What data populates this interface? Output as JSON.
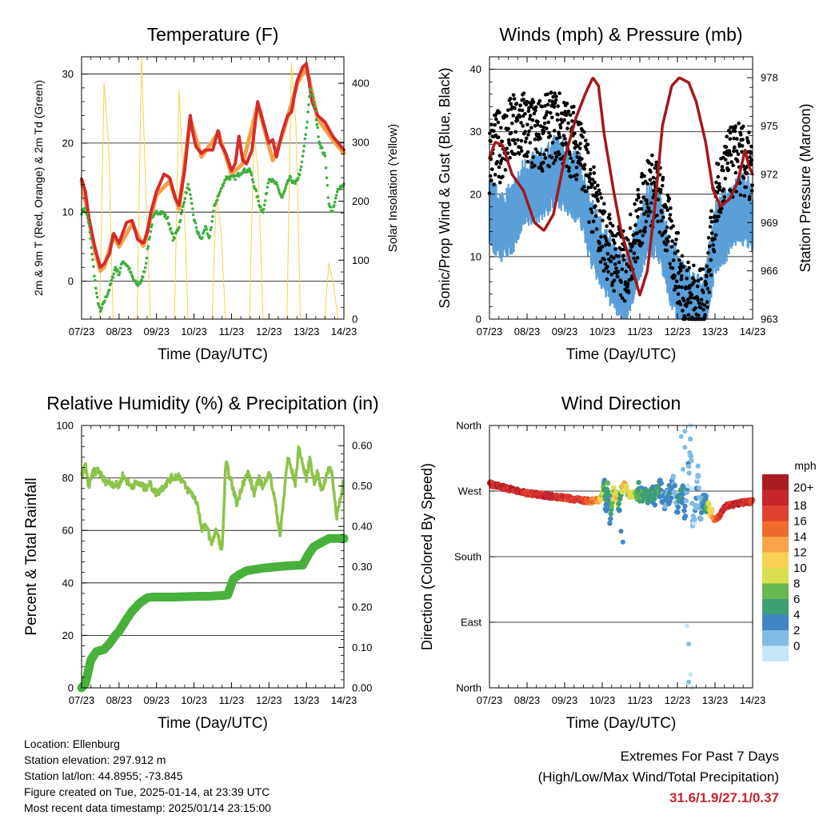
{
  "panels": {
    "temperature": {
      "title": "Temperature (F)",
      "ylabel_left": "2m & 9m T (Red, Orange) & 2m Td (Green)",
      "ylabel_right": "Solar Insolation (Yellow)",
      "xlabel": "Time (Day/UTC)",
      "yticks_left": [
        "0",
        "10",
        "20",
        "30"
      ],
      "yticks_right": [
        "0",
        "100",
        "200",
        "300",
        "400"
      ]
    },
    "winds": {
      "title": "Winds (mph) & Pressure (mb)",
      "ylabel_left": "Sonic/Prop Wind & Gust (Blue, Black)",
      "ylabel_right": "Station Pressure (Maroon)",
      "xlabel": "Time (Day/UTC)",
      "yticks_left": [
        "0",
        "10",
        "20",
        "30",
        "40"
      ],
      "yticks_right": [
        "963",
        "966",
        "969",
        "972",
        "975",
        "978"
      ]
    },
    "humidity": {
      "title": "Relative Humidity (%) & Precipitation (in)",
      "ylabel_left": "Percent & Total Rainfall",
      "xlabel": "Time (Day/UTC)",
      "yticks_left": [
        "0",
        "20",
        "40",
        "60",
        "80",
        "100"
      ],
      "yticks_right": [
        "0.00",
        "0.10",
        "0.20",
        "0.30",
        "0.40",
        "0.50",
        "0.60"
      ]
    },
    "direction": {
      "title": "Wind Direction",
      "ylabel_left": "Direction (Colored By Speed)",
      "xlabel": "Time (Day/UTC)",
      "yticks_left": [
        "North",
        "East",
        "South",
        "West",
        "North"
      ],
      "legend_title": "mph",
      "legend_labels": [
        "20+",
        "18",
        "16",
        "14",
        "12",
        "10",
        "8",
        "6",
        "4",
        "2",
        "0"
      ],
      "legend_colors": [
        "#a81c22",
        "#c8252e",
        "#e0412e",
        "#f06a2c",
        "#f9a34a",
        "#f7d154",
        "#d8df4e",
        "#67b84e",
        "#3f9f74",
        "#3f86c4",
        "#82bce5",
        "#c6e6f7"
      ]
    }
  },
  "xticks": [
    "07/23",
    "08/23",
    "09/23",
    "10/23",
    "11/23",
    "12/23",
    "13/23",
    "14/23"
  ],
  "info": {
    "location": "Location: Ellenburg",
    "elevation": "Station elevation: 297.912 m",
    "latlon": "Station lat/lon: 44.8955; -73.845",
    "created": "Figure created on Tue, 2025-01-14, at 23:39 UTC",
    "recent": "Most recent data timestamp: 2025/01/14 23:15:00"
  },
  "extremes": {
    "line1": "Extremes For Past 7 Days",
    "line2": "(High/Low/Max Wind/Total Precipitation)",
    "values": "31.6/1.9/27.1/0.37"
  },
  "colors": {
    "temp_2m": "#d42c2a",
    "temp_9m": "#f4a04a",
    "dewpoint": "#3fae3f",
    "insolation": "#f7d24a",
    "wind": "#5a9fd8",
    "gust": "#000000",
    "pressure": "#a3181c",
    "rh": "#8cc44a",
    "precip": "#47b13c"
  },
  "chart_data": [
    {
      "type": "line",
      "title": "Temperature (F)",
      "xlabel": "Time (Day/UTC)",
      "ylabel": "2m & 9m T (Red, Orange) & 2m Td (Green)",
      "ylabel_right": "Solar Insolation (Yellow)",
      "x_range": [
        0,
        7
      ],
      "ylim": [
        -5.5,
        32.5
      ],
      "ylim_right": [
        0,
        445
      ],
      "series": [
        {
          "name": "2m T",
          "color": "#d42c2a",
          "x": [
            0,
            0.1,
            0.2,
            0.35,
            0.5,
            0.6,
            0.75,
            0.85,
            1.0,
            1.2,
            1.35,
            1.5,
            1.65,
            1.75,
            1.85,
            2.0,
            2.2,
            2.35,
            2.5,
            2.6,
            2.75,
            2.9,
            2.95,
            3.05,
            3.2,
            3.3,
            3.5,
            3.65,
            3.7,
            3.85,
            4.0,
            4.1,
            4.2,
            4.3,
            4.4,
            4.55,
            4.7,
            4.85,
            5.0,
            5.1,
            5.2,
            5.35,
            5.5,
            5.6,
            5.75,
            5.9,
            6.0,
            6.15,
            6.3,
            6.5,
            6.7,
            6.85,
            7.0
          ],
          "values": [
            14.8,
            13,
            9,
            5,
            2,
            2.5,
            4,
            7,
            5.5,
            8.5,
            8.8,
            6,
            5.5,
            7,
            10,
            13,
            15.5,
            15,
            12,
            11,
            16,
            24,
            22,
            19.5,
            18.5,
            19,
            19,
            22,
            20,
            18.5,
            16,
            17,
            21,
            17.5,
            17,
            19,
            26,
            23,
            20,
            20.5,
            18,
            21.5,
            24,
            24.5,
            29,
            31,
            31.5,
            26,
            24,
            23,
            21,
            20,
            19
          ]
        },
        {
          "name": "9m T",
          "color": "#f4a04a",
          "x": [
            0,
            0.35,
            0.5,
            0.6,
            0.85,
            1.0,
            1.35,
            1.65,
            2.0,
            2.35,
            2.6,
            2.9,
            3.2,
            3.65,
            4.0,
            4.3,
            4.7,
            5.1,
            5.35,
            5.75,
            6.0,
            6.3,
            6.7,
            7.0
          ],
          "values": [
            14.5,
            4.5,
            1.5,
            2,
            6.5,
            5,
            8.3,
            5,
            12.5,
            14.5,
            10.5,
            23.5,
            18,
            21.5,
            15.5,
            17,
            25.5,
            17.5,
            21,
            28.5,
            31,
            23.5,
            20.5,
            18.5
          ]
        },
        {
          "name": "2m Td",
          "color": "#3fae3f",
          "x": [
            0,
            0.1,
            0.2,
            0.3,
            0.4,
            0.5,
            0.6,
            0.75,
            0.9,
            1.0,
            1.1,
            1.25,
            1.4,
            1.5,
            1.6,
            1.7,
            1.8,
            1.9,
            2.0,
            2.15,
            2.3,
            2.45,
            2.6,
            2.75,
            2.85,
            3.0,
            3.1,
            3.2,
            3.3,
            3.4,
            3.55,
            3.7,
            3.85,
            4.0,
            4.1,
            4.3,
            4.5,
            4.65,
            4.75,
            4.85,
            5.0,
            5.2,
            5.35,
            5.55,
            5.7,
            5.85,
            6.0,
            6.1,
            6.2,
            6.35,
            6.5,
            6.6,
            6.7,
            6.85,
            7.0
          ],
          "values": [
            10,
            10.5,
            8,
            3,
            -2,
            -4.5,
            -3,
            -1,
            2,
            1,
            3,
            2,
            0,
            -0.5,
            0,
            2,
            6,
            9,
            10,
            10,
            9,
            6,
            8,
            12,
            14,
            9,
            7,
            6,
            8,
            6,
            11,
            13,
            15,
            15,
            15,
            16,
            16,
            13,
            11,
            10,
            15,
            14,
            12,
            15,
            14,
            16,
            22,
            28,
            26,
            20,
            18,
            11,
            10,
            13.5,
            14
          ]
        },
        {
          "name": "Solar Insolation",
          "color": "#f7d24a",
          "axis": "right",
          "x": [
            0.48,
            0.6,
            0.72,
            0.84,
            1.48,
            1.6,
            1.72,
            1.84,
            2.48,
            2.6,
            2.72,
            2.84,
            3.48,
            3.6,
            3.72,
            3.84,
            4.48,
            4.6,
            4.72,
            4.84,
            5.48,
            5.6,
            5.72,
            5.84,
            6.48,
            6.6,
            6.72,
            6.84
          ],
          "values": [
            0,
            400,
            300,
            0,
            0,
            445,
            200,
            0,
            0,
            390,
            230,
            0,
            0,
            210,
            150,
            0,
            0,
            320,
            240,
            0,
            0,
            435,
            330,
            0,
            0,
            95,
            60,
            0
          ]
        }
      ]
    },
    {
      "type": "line",
      "title": "Winds (mph) & Pressure (mb)",
      "xlabel": "Time (Day/UTC)",
      "ylabel": "Sonic/Prop Wind & Gust (Blue, Black)",
      "ylabel_right": "Station Pressure (Maroon)",
      "x_range": [
        0,
        7
      ],
      "ylim": [
        0,
        42
      ],
      "ylim_right": [
        963,
        979.3
      ],
      "series": [
        {
          "name": "Wind",
          "color": "#5a9fd8",
          "x": [
            0,
            0.3,
            0.6,
            0.9,
            1.2,
            1.5,
            1.8,
            2.1,
            2.4,
            2.7,
            3.0,
            3.3,
            3.6,
            3.9,
            4.2,
            4.5,
            4.8,
            5.1,
            5.4,
            5.7,
            6.0,
            6.3,
            6.6,
            6.9,
            7.0
          ],
          "values": [
            17,
            15,
            16,
            20,
            21,
            22,
            24,
            22,
            21,
            14,
            10,
            7,
            4,
            10,
            16,
            15,
            8,
            4,
            2,
            1,
            13,
            15,
            18,
            17,
            16
          ]
        },
        {
          "name": "Gust",
          "color": "#000000",
          "x": [
            0,
            0.3,
            0.6,
            0.9,
            1.2,
            1.5,
            1.8,
            2.1,
            2.4,
            2.7,
            3.0,
            3.3,
            3.6,
            3.9,
            4.2,
            4.5,
            4.8,
            5.1,
            5.4,
            5.7,
            6.0,
            6.3,
            6.6,
            6.9,
            7.0
          ],
          "values": [
            26,
            28,
            30,
            31,
            29,
            30,
            31,
            29,
            28,
            20,
            14,
            10,
            8,
            14,
            21,
            20,
            13,
            6,
            3,
            2,
            18,
            24,
            26,
            24,
            23
          ]
        },
        {
          "name": "Station Pressure",
          "color": "#a3181c",
          "axis": "right",
          "x": [
            0,
            0.15,
            0.35,
            0.6,
            0.9,
            1.2,
            1.45,
            1.7,
            2.0,
            2.3,
            2.55,
            2.75,
            2.9,
            3.05,
            3.3,
            3.5,
            3.75,
            4.0,
            4.2,
            4.4,
            4.6,
            4.85,
            5.05,
            5.3,
            5.5,
            5.75,
            5.95,
            6.15,
            6.4,
            6.6,
            6.8,
            6.9,
            7.0
          ],
          "values": [
            973,
            974,
            973.8,
            972,
            971,
            969,
            968.5,
            969.5,
            973,
            975.5,
            977,
            978,
            977.5,
            974.5,
            971,
            968.5,
            966.5,
            964.5,
            966,
            970,
            975,
            977.5,
            978,
            977.7,
            976.5,
            974,
            971,
            970,
            970.5,
            971.5,
            973.5,
            972.5,
            972
          ]
        }
      ]
    },
    {
      "type": "line",
      "title": "Relative Humidity (%) & Precipitation (in)",
      "xlabel": "Time (Day/UTC)",
      "ylabel": "Percent & Total Rainfall",
      "x_range": [
        0,
        7
      ],
      "ylim": [
        0,
        100
      ],
      "ylim_right": [
        0,
        0.65
      ],
      "series": [
        {
          "name": "Relative Humidity",
          "color": "#8cc44a",
          "x": [
            0,
            0.1,
            0.2,
            0.3,
            0.45,
            0.6,
            0.8,
            1.0,
            1.1,
            1.3,
            1.5,
            1.7,
            1.8,
            2.0,
            2.2,
            2.4,
            2.6,
            2.8,
            2.95,
            3.1,
            3.2,
            3.35,
            3.45,
            3.6,
            3.75,
            3.85,
            4.0,
            4.15,
            4.3,
            4.45,
            4.6,
            4.75,
            4.85,
            5.0,
            5.15,
            5.3,
            5.5,
            5.6,
            5.7,
            5.8,
            5.9,
            6.0,
            6.1,
            6.2,
            6.3,
            6.4,
            6.5,
            6.6,
            6.7,
            6.8,
            6.9,
            7.0
          ],
          "values": [
            80,
            85,
            76,
            82,
            83,
            79,
            78,
            77,
            81,
            77,
            78,
            76,
            78,
            74,
            77,
            80,
            81,
            76,
            74,
            70,
            60,
            62,
            55,
            60,
            52,
            86,
            78,
            70,
            78,
            82,
            74,
            80,
            76,
            83,
            72,
            58,
            88,
            83,
            78,
            92,
            85,
            80,
            88,
            78,
            82,
            75,
            79,
            85,
            80,
            65,
            72,
            80
          ]
        },
        {
          "name": "Total Precipitation",
          "color": "#47b13c",
          "axis": "right",
          "x": [
            0,
            0.1,
            0.25,
            0.4,
            0.6,
            0.75,
            0.9,
            1.0,
            1.2,
            1.35,
            1.55,
            1.75,
            1.9,
            2.2,
            2.5,
            2.8,
            3.1,
            3.4,
            3.6,
            3.8,
            3.9,
            4.05,
            4.2,
            4.4,
            4.8,
            5.2,
            5.6,
            5.9,
            6.05,
            6.2,
            6.4,
            6.6,
            7.0
          ],
          "values": [
            0,
            0.01,
            0.07,
            0.09,
            0.095,
            0.11,
            0.13,
            0.14,
            0.17,
            0.19,
            0.21,
            0.223,
            0.225,
            0.225,
            0.225,
            0.226,
            0.227,
            0.227,
            0.228,
            0.229,
            0.23,
            0.27,
            0.28,
            0.29,
            0.296,
            0.3,
            0.303,
            0.304,
            0.33,
            0.35,
            0.36,
            0.37,
            0.37
          ]
        }
      ]
    },
    {
      "type": "scatter",
      "title": "Wind Direction",
      "xlabel": "Time (Day/UTC)",
      "ylabel": "Direction (Colored By Speed)",
      "x_range": [
        0,
        7
      ],
      "ylim": [
        0,
        360
      ],
      "ytick_values": [
        0,
        90,
        180,
        270,
        360
      ],
      "color_scale": "mph",
      "series": [
        {
          "name": "Direction",
          "x": [
            0,
            0.3,
            0.6,
            0.9,
            1.2,
            1.5,
            1.8,
            2.1,
            2.4,
            2.7,
            2.9,
            3.0,
            3.05,
            3.1,
            3.15,
            3.2,
            3.3,
            3.4,
            3.45,
            3.5,
            3.55,
            3.6,
            3.7,
            3.8,
            3.9,
            4.0,
            4.2,
            4.4,
            4.5,
            4.6,
            4.7,
            4.8,
            4.9,
            5.0,
            5.1,
            5.2,
            5.3,
            5.35,
            5.4,
            5.45,
            5.5,
            5.55,
            5.6,
            5.7,
            5.8,
            5.9,
            6.0,
            6.1,
            6.2,
            6.3,
            6.5,
            6.7,
            6.9,
            7.0
          ],
          "values": [
            280,
            276,
            272,
            268,
            266,
            264,
            262,
            260,
            258,
            256,
            258,
            262,
            275,
            250,
            280,
            235,
            270,
            260,
            245,
            270,
            275,
            280,
            265,
            268,
            262,
            270,
            266,
            262,
            272,
            268,
            255,
            265,
            280,
            250,
            275,
            245,
            300,
            345,
            232,
            225,
            250,
            310,
            240,
            260,
            250,
            240,
            230,
            235,
            245,
            250,
            252,
            254,
            255,
            256
          ],
          "speeds": [
            20,
            20,
            20,
            20,
            19,
            20,
            20,
            18,
            19,
            16,
            14,
            10,
            6,
            4,
            7,
            3,
            10,
            12,
            4,
            8,
            12,
            14,
            9,
            11,
            8,
            6,
            6,
            5,
            7,
            4,
            3,
            5,
            2,
            4,
            6,
            3,
            2,
            1,
            2,
            1,
            3,
            1,
            2,
            4,
            8,
            12,
            16,
            18,
            20,
            19,
            20,
            20,
            19,
            18
          ]
        }
      ]
    }
  ]
}
